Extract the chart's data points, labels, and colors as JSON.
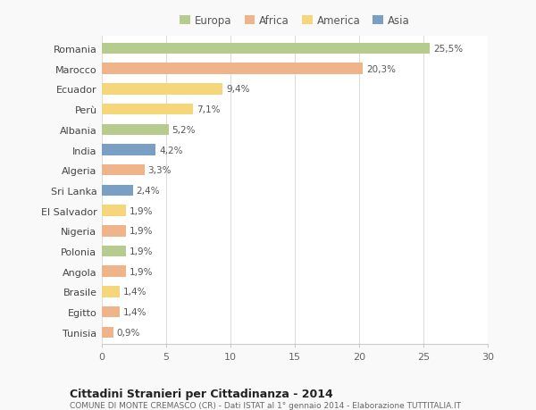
{
  "countries": [
    "Romania",
    "Marocco",
    "Ecuador",
    "Perù",
    "Albania",
    "India",
    "Algeria",
    "Sri Lanka",
    "El Salvador",
    "Nigeria",
    "Polonia",
    "Angola",
    "Brasile",
    "Egitto",
    "Tunisia"
  ],
  "values": [
    25.5,
    20.3,
    9.4,
    7.1,
    5.2,
    4.2,
    3.3,
    2.4,
    1.9,
    1.9,
    1.9,
    1.9,
    1.4,
    1.4,
    0.9
  ],
  "labels": [
    "25,5%",
    "20,3%",
    "9,4%",
    "7,1%",
    "5,2%",
    "4,2%",
    "3,3%",
    "2,4%",
    "1,9%",
    "1,9%",
    "1,9%",
    "1,9%",
    "1,4%",
    "1,4%",
    "0,9%"
  ],
  "colors": [
    "#b5cc8e",
    "#f0b48a",
    "#f5d67a",
    "#f5d67a",
    "#b5cc8e",
    "#7a9fc4",
    "#f0b48a",
    "#7a9fc4",
    "#f5d67a",
    "#f0b48a",
    "#b5cc8e",
    "#f0b48a",
    "#f5d67a",
    "#f0b48a",
    "#f0b48a"
  ],
  "legend": [
    {
      "label": "Europa",
      "color": "#b5cc8e"
    },
    {
      "label": "Africa",
      "color": "#f0b48a"
    },
    {
      "label": "America",
      "color": "#f5d67a"
    },
    {
      "label": "Asia",
      "color": "#7a9fc4"
    }
  ],
  "xlim": [
    0,
    30
  ],
  "xticks": [
    0,
    5,
    10,
    15,
    20,
    25,
    30
  ],
  "title": "Cittadini Stranieri per Cittadinanza - 2014",
  "subtitle": "COMUNE DI MONTE CREMASCO (CR) - Dati ISTAT al 1° gennaio 2014 - Elaborazione TUTTITALIA.IT",
  "bg_color": "#f9f9f9",
  "bar_bg": "#ffffff",
  "bar_height": 0.55
}
